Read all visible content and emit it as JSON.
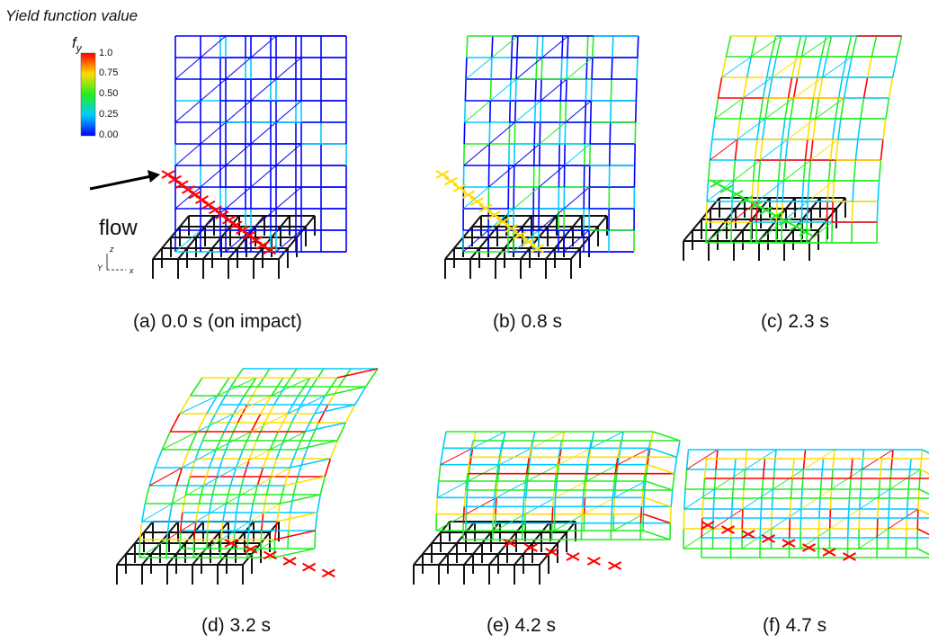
{
  "legend": {
    "title": "Yield function value",
    "symbol": "f",
    "symbol_sub": "y",
    "ticks": [
      "1.0",
      "0.75",
      "0.50",
      "0.25",
      "0.00"
    ],
    "colors": [
      "#ff0000",
      "#ffdd00",
      "#22ee22",
      "#00ccff",
      "#0000ff"
    ]
  },
  "flow_label": "flow",
  "axes": {
    "z": "z",
    "y": "Y",
    "x": "x"
  },
  "panels": [
    {
      "caption": "(a) 0.0 s (on impact)"
    },
    {
      "caption": "(b) 0.8 s"
    },
    {
      "caption": "(c) 2.3 s"
    },
    {
      "caption": "(d) 3.2 s"
    },
    {
      "caption": "(e) 4.2 s"
    },
    {
      "caption": "(f) 4.7 s"
    }
  ]
}
